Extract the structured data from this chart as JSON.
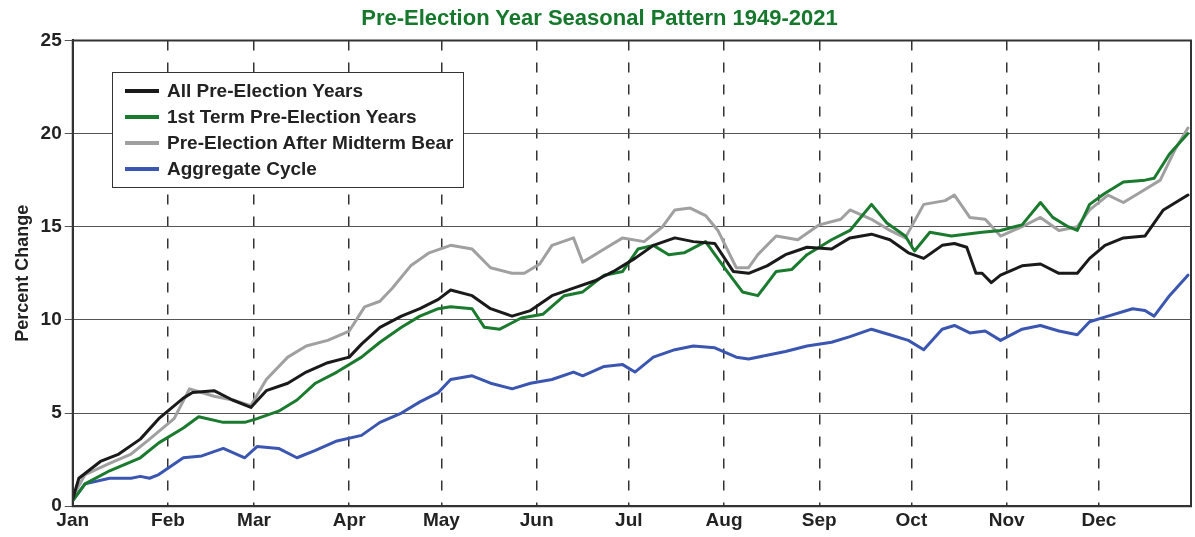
{
  "chart_data": {
    "type": "line",
    "title": "Pre-Election Year Seasonal Pattern 1949-2021",
    "ylabel": "Percent Change",
    "xlim": [
      "--01-01",
      "--12-31"
    ],
    "xticks": [
      {
        "value": "--01-01",
        "label": "Jan"
      },
      {
        "value": "--02-01",
        "label": "Feb"
      },
      {
        "value": "--03-01",
        "label": "Mar"
      },
      {
        "value": "--04-01",
        "label": "Apr"
      },
      {
        "value": "--05-01",
        "label": "May"
      },
      {
        "value": "--06-01",
        "label": "Jun"
      },
      {
        "value": "--07-01",
        "label": "Jul"
      },
      {
        "value": "--08-01",
        "label": "Aug"
      },
      {
        "value": "--09-01",
        "label": "Sep"
      },
      {
        "value": "--10-01",
        "label": "Oct"
      },
      {
        "value": "--11-01",
        "label": "Nov"
      },
      {
        "value": "--12-01",
        "label": "Dec"
      }
    ],
    "ylim": [
      0,
      25
    ],
    "yticks": [
      0,
      5,
      10,
      15,
      20,
      25
    ],
    "grid": true,
    "legend": "top left",
    "marker": "none",
    "line_style": "solid",
    "series": [
      {
        "name": "All Pre-Election Years",
        "color": "#1a1a1a",
        "x": [
          "--01-01",
          "--01-03",
          "--01-10",
          "--01-16",
          "--01-23",
          "--01-29",
          "--02-06",
          "--02-09",
          "--02-16",
          "--02-22",
          "--02-28",
          "--03-05",
          "--03-12",
          "--03-18",
          "--03-25",
          "--04-01",
          "--04-05",
          "--04-11",
          "--04-18",
          "--04-24",
          "--04-30",
          "--05-04",
          "--05-11",
          "--05-17",
          "--05-24",
          "--05-30",
          "--06-06",
          "--06-13",
          "--06-20",
          "--06-26",
          "--07-03",
          "--07-09",
          "--07-16",
          "--07-22",
          "--07-29",
          "--08-04",
          "--08-09",
          "--08-15",
          "--08-21",
          "--08-28",
          "--09-05",
          "--09-11",
          "--09-18",
          "--09-24",
          "--09-30",
          "--10-05",
          "--10-11",
          "--10-15",
          "--10-19",
          "--10-22",
          "--10-24",
          "--10-27",
          "--10-30",
          "--11-06",
          "--11-12",
          "--11-18",
          "--11-24",
          "--11-28",
          "--12-03",
          "--12-09",
          "--12-16",
          "--12-22",
          "--12-30"
        ],
        "values": [
          0.4,
          1.5,
          2.4,
          2.8,
          3.6,
          4.7,
          5.8,
          6.1,
          6.2,
          5.7,
          5.3,
          6.2,
          6.6,
          7.2,
          7.7,
          8.0,
          8.7,
          9.6,
          10.2,
          10.6,
          11.1,
          11.6,
          11.3,
          10.6,
          10.2,
          10.5,
          11.3,
          11.7,
          12.1,
          12.6,
          13.3,
          14.0,
          14.4,
          14.2,
          14.1,
          12.6,
          12.5,
          12.9,
          13.5,
          13.9,
          13.8,
          14.4,
          14.6,
          14.3,
          13.6,
          13.3,
          14.0,
          14.1,
          13.9,
          12.5,
          12.5,
          12.0,
          12.4,
          12.9,
          13.0,
          12.5,
          12.5,
          13.3,
          14.0,
          14.4,
          14.5,
          15.9,
          16.7
        ]
      },
      {
        "name": "1st Term Pre-Election Years",
        "color": "#1a7a2e",
        "x": [
          "--01-01",
          "--01-05",
          "--01-13",
          "--01-23",
          "--01-29",
          "--02-06",
          "--02-11",
          "--02-19",
          "--02-26",
          "--03-02",
          "--03-09",
          "--03-15",
          "--03-21",
          "--03-28",
          "--04-05",
          "--04-11",
          "--04-18",
          "--04-24",
          "--04-30",
          "--05-04",
          "--05-11",
          "--05-15",
          "--05-20",
          "--05-27",
          "--06-03",
          "--06-10",
          "--06-16",
          "--06-23",
          "--06-29",
          "--07-04",
          "--07-09",
          "--07-14",
          "--07-19",
          "--07-26",
          "--08-02",
          "--08-07",
          "--08-12",
          "--08-18",
          "--08-23",
          "--08-28",
          "--09-05",
          "--09-11",
          "--09-18",
          "--09-23",
          "--09-29",
          "--10-02",
          "--10-07",
          "--10-14",
          "--10-24",
          "--10-30",
          "--11-06",
          "--11-12",
          "--11-16",
          "--11-21",
          "--11-24",
          "--11-28",
          "--12-03",
          "--12-09",
          "--12-16",
          "--12-19",
          "--12-24",
          "--12-30"
        ],
        "values": [
          0.3,
          1.2,
          1.9,
          2.6,
          3.4,
          4.2,
          4.8,
          4.5,
          4.5,
          4.7,
          5.1,
          5.7,
          6.6,
          7.2,
          8.0,
          8.8,
          9.6,
          10.2,
          10.6,
          10.7,
          10.6,
          9.6,
          9.5,
          10.1,
          10.3,
          11.3,
          11.5,
          12.4,
          12.6,
          13.8,
          14.0,
          13.5,
          13.6,
          14.2,
          12.6,
          11.5,
          11.3,
          12.6,
          12.7,
          13.5,
          14.3,
          14.8,
          16.2,
          15.2,
          14.5,
          13.7,
          14.7,
          14.5,
          14.7,
          14.8,
          15.1,
          16.3,
          15.5,
          15.0,
          14.8,
          16.2,
          16.8,
          17.4,
          17.5,
          17.6,
          18.9,
          20.0
        ]
      },
      {
        "name": "Pre-Election After Midterm Bear",
        "color": "#a0a0a0",
        "x": [
          "--01-01",
          "--01-05",
          "--01-13",
          "--01-20",
          "--01-26",
          "--02-03",
          "--02-08",
          "--02-16",
          "--02-22",
          "--02-28",
          "--03-05",
          "--03-12",
          "--03-18",
          "--03-25",
          "--04-01",
          "--04-06",
          "--04-11",
          "--04-15",
          "--04-21",
          "--04-27",
          "--05-04",
          "--05-11",
          "--05-17",
          "--05-24",
          "--05-28",
          "--06-02",
          "--06-06",
          "--06-13",
          "--06-16",
          "--06-23",
          "--06-29",
          "--07-06",
          "--07-12",
          "--07-16",
          "--07-21",
          "--07-26",
          "--07-30",
          "--08-05",
          "--08-09",
          "--08-12",
          "--08-18",
          "--08-25",
          "--09-01",
          "--09-08",
          "--09-11",
          "--09-18",
          "--09-24",
          "--09-29",
          "--10-05",
          "--10-12",
          "--10-15",
          "--10-20",
          "--10-25",
          "--10-30",
          "--11-06",
          "--11-12",
          "--11-18",
          "--11-24",
          "--11-28",
          "--12-04",
          "--12-09",
          "--12-16",
          "--12-21",
          "--12-26",
          "--12-30"
        ],
        "values": [
          0.5,
          1.7,
          2.3,
          2.8,
          3.6,
          4.7,
          6.3,
          5.9,
          5.7,
          5.4,
          6.8,
          8.0,
          8.6,
          8.9,
          9.4,
          10.7,
          11.0,
          11.7,
          12.9,
          13.6,
          14.0,
          13.8,
          12.8,
          12.5,
          12.5,
          13.0,
          14.0,
          14.4,
          13.1,
          13.8,
          14.4,
          14.2,
          15.0,
          15.9,
          16.0,
          15.6,
          14.8,
          12.8,
          12.8,
          13.5,
          14.5,
          14.3,
          15.1,
          15.4,
          15.9,
          15.4,
          14.8,
          14.4,
          16.2,
          16.4,
          16.7,
          15.5,
          15.4,
          14.5,
          15.0,
          15.5,
          14.8,
          15.0,
          15.9,
          16.7,
          16.3,
          17.0,
          17.5,
          19.2,
          20.3
        ]
      },
      {
        "name": "Aggregate Cycle",
        "color": "#3a56b0",
        "x": [
          "--01-01",
          "--01-05",
          "--01-13",
          "--01-20",
          "--01-23",
          "--01-26",
          "--01-29",
          "--02-06",
          "--02-12",
          "--02-19",
          "--02-26",
          "--03-02",
          "--03-09",
          "--03-15",
          "--03-21",
          "--03-28",
          "--04-05",
          "--04-11",
          "--04-18",
          "--04-24",
          "--04-30",
          "--05-04",
          "--05-11",
          "--05-17",
          "--05-24",
          "--05-30",
          "--06-06",
          "--06-13",
          "--06-16",
          "--06-23",
          "--06-29",
          "--07-03",
          "--07-09",
          "--07-16",
          "--07-22",
          "--07-29",
          "--08-05",
          "--08-09",
          "--08-15",
          "--08-21",
          "--08-28",
          "--09-05",
          "--09-11",
          "--09-18",
          "--09-24",
          "--09-30",
          "--10-05",
          "--10-11",
          "--10-15",
          "--10-20",
          "--10-25",
          "--10-30",
          "--11-06",
          "--11-12",
          "--11-18",
          "--11-24",
          "--11-28",
          "--12-04",
          "--12-12",
          "--12-16",
          "--12-19",
          "--12-24",
          "--12-30"
        ],
        "values": [
          0.3,
          1.2,
          1.5,
          1.5,
          1.6,
          1.5,
          1.7,
          2.6,
          2.7,
          3.1,
          2.6,
          3.2,
          3.1,
          2.6,
          3.0,
          3.5,
          3.8,
          4.5,
          5.0,
          5.6,
          6.1,
          6.8,
          7.0,
          6.6,
          6.3,
          6.6,
          6.8,
          7.2,
          7.0,
          7.5,
          7.6,
          7.2,
          8.0,
          8.4,
          8.6,
          8.5,
          8.0,
          7.9,
          8.1,
          8.3,
          8.6,
          8.8,
          9.1,
          9.5,
          9.2,
          8.9,
          8.4,
          9.5,
          9.7,
          9.3,
          9.4,
          8.9,
          9.5,
          9.7,
          9.4,
          9.2,
          9.9,
          10.2,
          10.6,
          10.5,
          10.2,
          11.3,
          12.4
        ]
      }
    ]
  }
}
